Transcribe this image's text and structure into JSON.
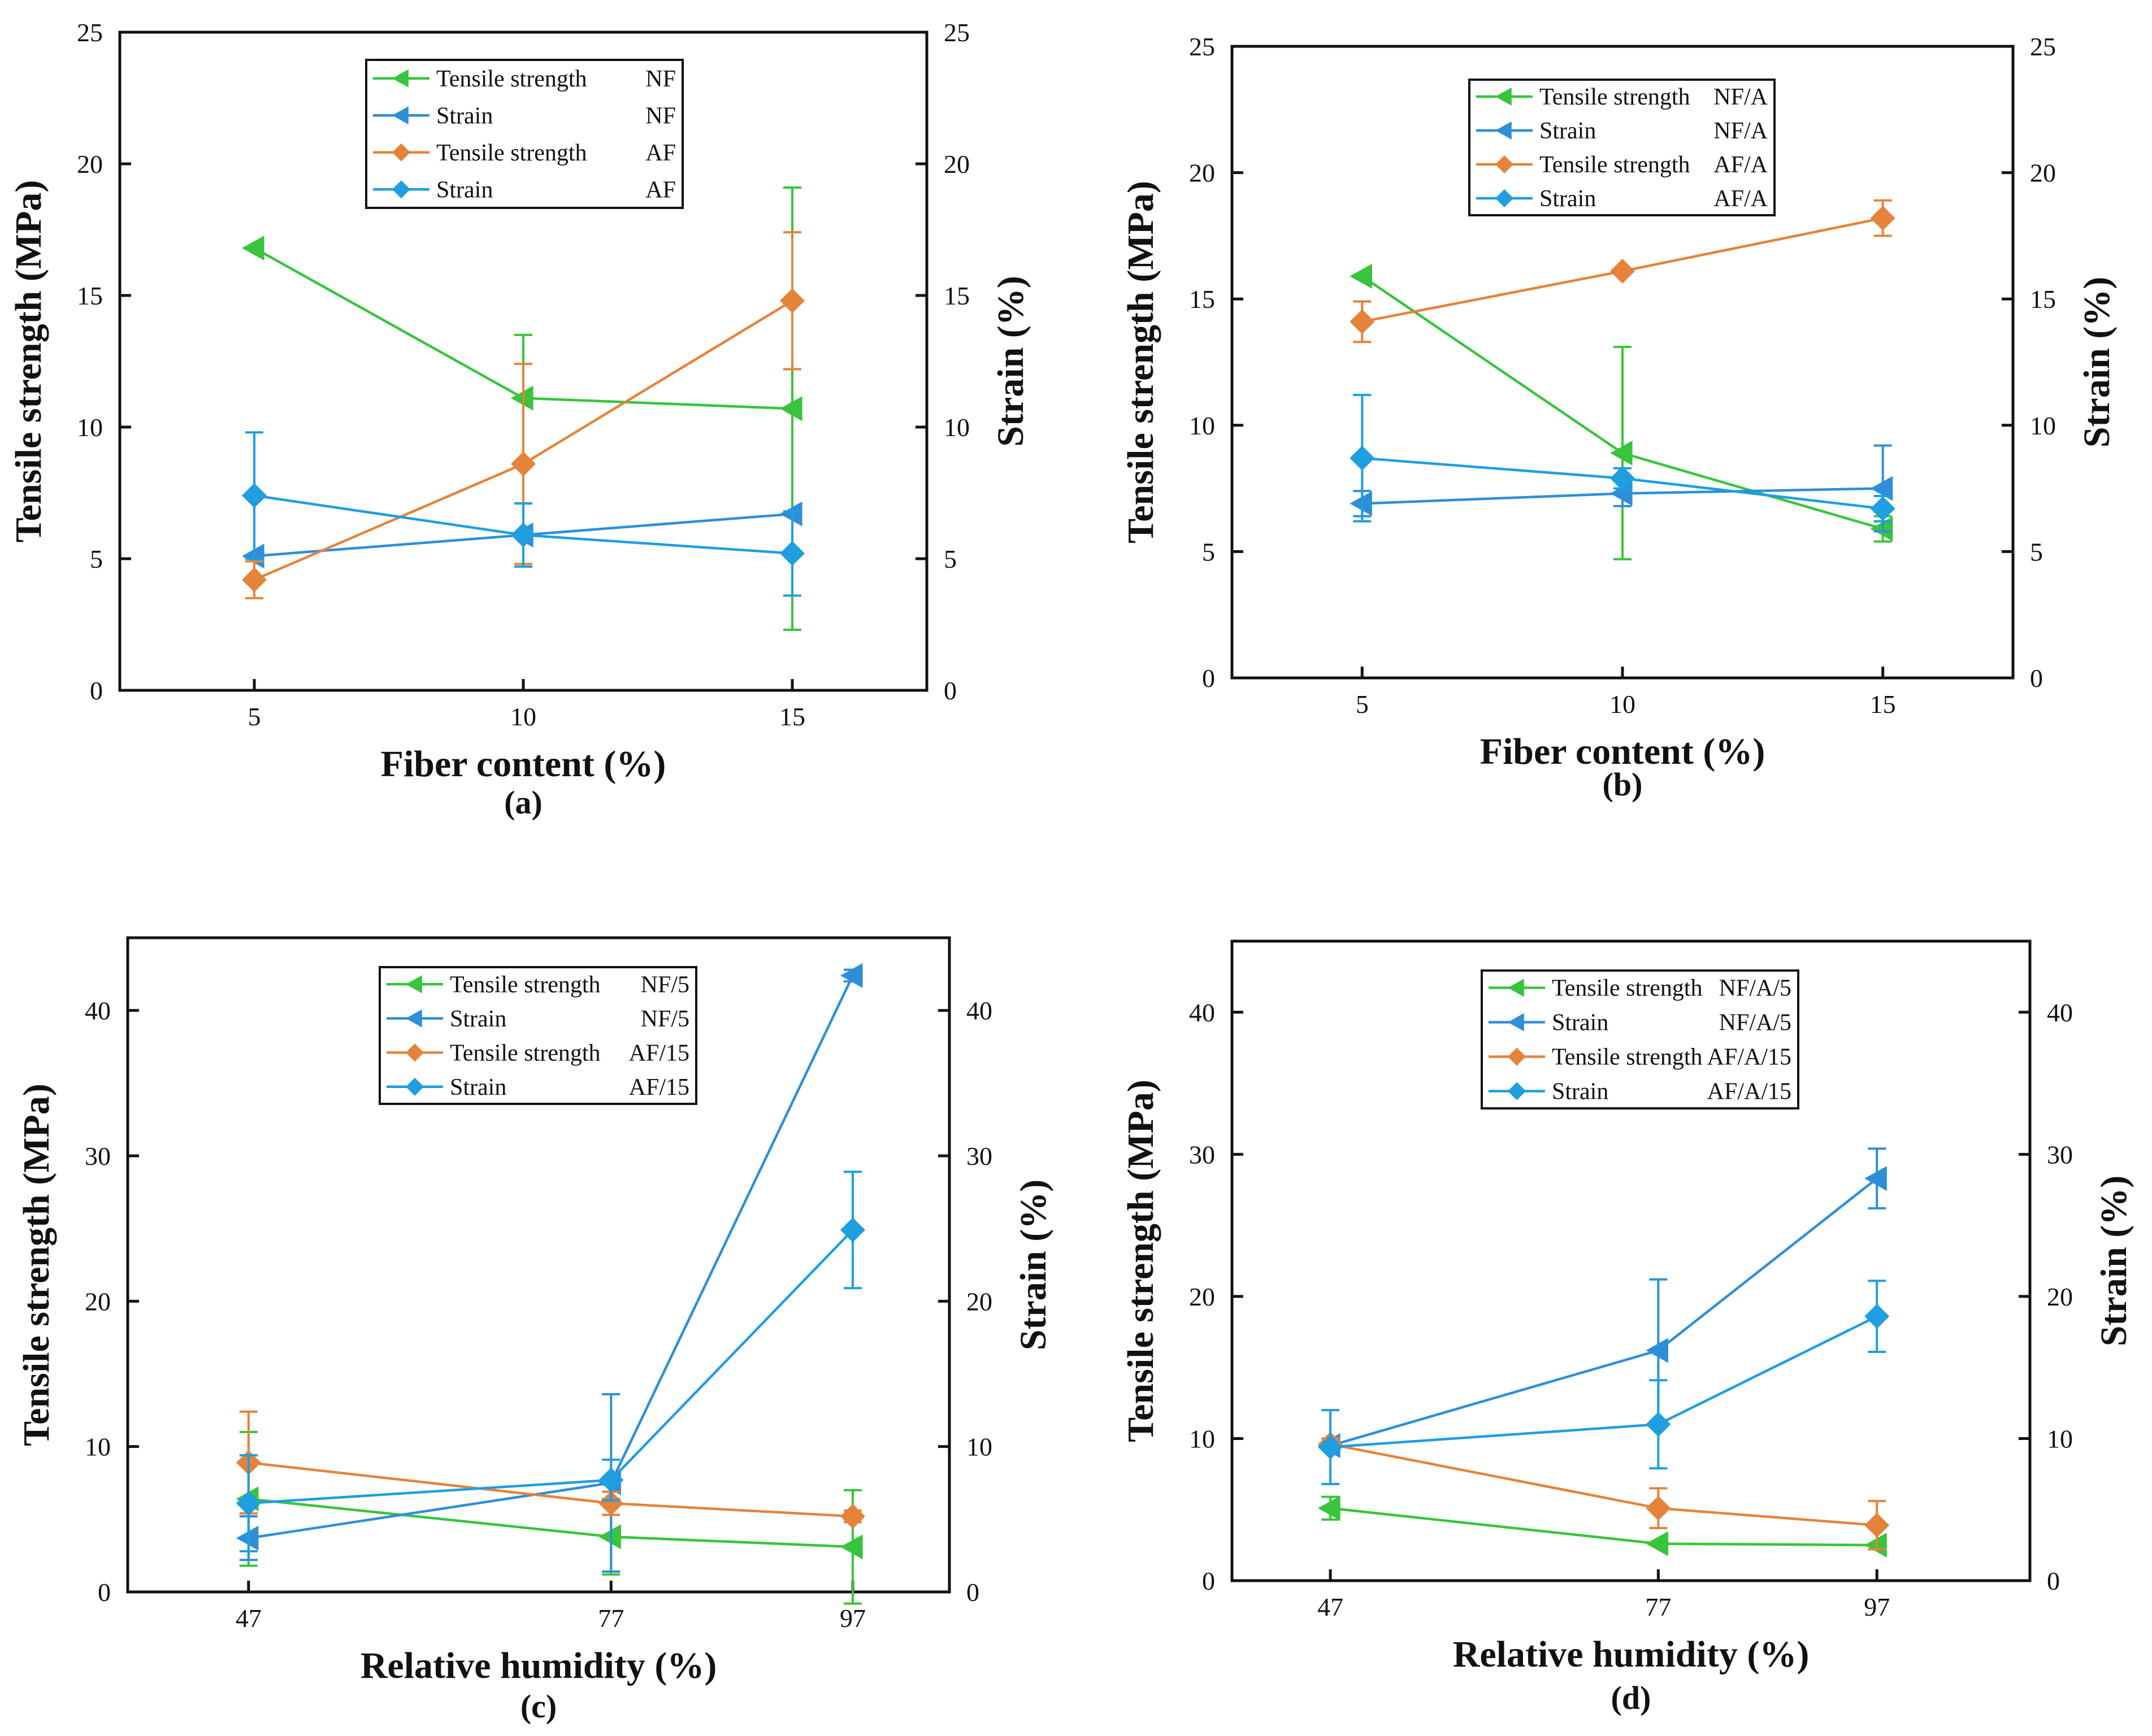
{
  "figure": {
    "colors": {
      "nf_tensile": "#38c43c",
      "nf_strain": "#2e8fd6",
      "af_tensile": "#e5833a",
      "af_strain": "#1f9ee0",
      "axis": "#111111"
    }
  },
  "chart_data": [
    {
      "id": "a",
      "type": "line",
      "caption": "(a)",
      "xlabel": "Fiber content (%)",
      "ylabel_left": "Tensile strength (MPa)",
      "ylabel_right": "Strain (%)",
      "x": [
        5,
        10,
        15
      ],
      "x_ticks": [
        "5",
        "10",
        "15"
      ],
      "xlim": [
        2.5,
        17.5
      ],
      "ylim_left": [
        0,
        25
      ],
      "ylim_right": [
        0,
        25
      ],
      "y_ticks_left": [
        "0",
        "5",
        "10",
        "15",
        "20",
        "25"
      ],
      "y_ticks_right": [
        "0",
        "5",
        "10",
        "15",
        "20",
        "25"
      ],
      "y_tick_values": [
        0,
        5,
        10,
        15,
        20,
        25
      ],
      "series": [
        {
          "name": "Tensile strength NF",
          "legend_left": "Tensile strength",
          "legend_right": "NF",
          "axis": "left",
          "marker": "triangle-left",
          "color_key": "nf_tensile",
          "values": [
            16.8,
            11.1,
            10.7
          ],
          "errors": [
            0,
            2.4,
            8.4
          ]
        },
        {
          "name": "Strain NF",
          "legend_left": "Strain",
          "legend_right": "NF",
          "axis": "right",
          "marker": "triangle-left",
          "color_key": "nf_strain",
          "values": [
            5.1,
            5.9,
            6.7
          ],
          "errors": [
            0,
            1.2,
            0
          ]
        },
        {
          "name": "Tensile strength AF",
          "legend_left": "Tensile strength",
          "legend_right": "AF",
          "axis": "left",
          "marker": "diamond",
          "color_key": "af_tensile",
          "values": [
            4.2,
            8.6,
            14.8
          ],
          "errors": [
            0.7,
            3.8,
            2.6
          ]
        },
        {
          "name": "Strain AF",
          "legend_left": "Strain",
          "legend_right": "AF",
          "axis": "right",
          "marker": "diamond",
          "color_key": "af_strain",
          "values": [
            7.4,
            5.9,
            5.2
          ],
          "errors": [
            2.4,
            1.2,
            1.6
          ]
        }
      ]
    },
    {
      "id": "b",
      "type": "line",
      "caption": "(b)",
      "xlabel": "Fiber content (%)",
      "ylabel_left": "Tensile strength (MPa)",
      "ylabel_right": "Strain (%)",
      "x": [
        5,
        10,
        15
      ],
      "x_ticks": [
        "5",
        "10",
        "15"
      ],
      "xlim": [
        2.5,
        17.5
      ],
      "ylim_left": [
        0,
        25
      ],
      "ylim_right": [
        0,
        25
      ],
      "y_ticks_left": [
        "0",
        "5",
        "10",
        "15",
        "20",
        "25"
      ],
      "y_ticks_right": [
        "0",
        "5",
        "10",
        "15",
        "20",
        "25"
      ],
      "y_tick_values": [
        0,
        5,
        10,
        15,
        20,
        25
      ],
      "series": [
        {
          "name": "Tensile strength NF/A",
          "legend_left": "Tensile strength",
          "legend_right": "NF/A",
          "axis": "left",
          "marker": "triangle-left",
          "color_key": "nf_tensile",
          "values": [
            15.9,
            8.9,
            5.9
          ],
          "errors": [
            0,
            4.2,
            0.5
          ]
        },
        {
          "name": "Strain NF/A",
          "legend_left": "Strain",
          "legend_right": "NF/A",
          "axis": "right",
          "marker": "triangle-left",
          "color_key": "nf_strain",
          "values": [
            6.9,
            7.3,
            7.5
          ],
          "errors": [
            0.5,
            0.5,
            1.7
          ]
        },
        {
          "name": "Tensile strength AF/A",
          "legend_left": "Tensile strength",
          "legend_right": "AF/A",
          "axis": "left",
          "marker": "diamond",
          "color_key": "af_tensile",
          "values": [
            14.1,
            16.1,
            18.2
          ],
          "errors": [
            0.8,
            0,
            0.7
          ]
        },
        {
          "name": "Strain AF/A",
          "legend_left": "Strain",
          "legend_right": "AF/A",
          "axis": "right",
          "marker": "diamond",
          "color_key": "af_strain",
          "values": [
            8.7,
            7.9,
            6.7
          ],
          "errors": [
            2.5,
            0.4,
            0.5
          ]
        }
      ]
    },
    {
      "id": "c",
      "type": "line",
      "caption": "(c)",
      "xlabel": "Relative humidity (%)",
      "ylabel_left": "Tensile strength (MPa)",
      "ylabel_right": "Strain (%)",
      "x": [
        47,
        77,
        97
      ],
      "x_ticks": [
        "47",
        "77",
        "97"
      ],
      "xlim": [
        37,
        105
      ],
      "ylim_left": [
        0,
        45
      ],
      "ylim_right": [
        0,
        45
      ],
      "y_ticks_left": [
        "0",
        "10",
        "20",
        "30",
        "40"
      ],
      "y_ticks_right": [
        "0",
        "10",
        "20",
        "30",
        "40"
      ],
      "y_tick_values": [
        0,
        10,
        20,
        30,
        40
      ],
      "series": [
        {
          "name": "Tensile strength NF/5",
          "legend_left": "Tensile strength",
          "legend_right": "NF/5",
          "axis": "left",
          "marker": "triangle-left",
          "color_key": "nf_tensile",
          "values": [
            6.4,
            3.8,
            3.1
          ],
          "errors": [
            4.6,
            2.6,
            3.9
          ]
        },
        {
          "name": "Strain NF/5",
          "legend_left": "Strain",
          "legend_right": "NF/5",
          "axis": "right",
          "marker": "triangle-left",
          "color_key": "nf_strain",
          "values": [
            3.7,
            7.5,
            42.4
          ],
          "errors": [
            1.5,
            6.1,
            0.4
          ]
        },
        {
          "name": "Tensile strength AF/15",
          "legend_left": "Tensile strength",
          "legend_right": "AF/15",
          "axis": "left",
          "marker": "diamond",
          "color_key": "af_tensile",
          "values": [
            8.9,
            6.1,
            5.2
          ],
          "errors": [
            3.5,
            0.8,
            0.4
          ]
        },
        {
          "name": "Strain AF/15",
          "legend_left": "Strain",
          "legend_right": "AF/15",
          "axis": "right",
          "marker": "diamond",
          "color_key": "af_strain",
          "values": [
            6.1,
            7.7,
            24.9
          ],
          "errors": [
            3.3,
            1.4,
            4
          ]
        }
      ]
    },
    {
      "id": "d",
      "type": "line",
      "caption": "(d)",
      "xlabel": "Relative humidity (%)",
      "ylabel_left": "Tensile strength (MPa)",
      "ylabel_right": "Strain (%)",
      "x": [
        47,
        77,
        97
      ],
      "x_ticks": [
        "47",
        "77",
        "97"
      ],
      "xlim": [
        38,
        111
      ],
      "ylim_left": [
        0,
        45
      ],
      "ylim_right": [
        0,
        45
      ],
      "y_ticks_left": [
        "0",
        "10",
        "20",
        "30",
        "40"
      ],
      "y_ticks_right": [
        "0",
        "10",
        "20",
        "30",
        "40"
      ],
      "y_tick_values": [
        0,
        10,
        20,
        30,
        40
      ],
      "series": [
        {
          "name": "Tensile strength NF/A/5",
          "legend_left": "Tensile strength",
          "legend_right": "NF/A/5",
          "axis": "left",
          "marker": "triangle-left",
          "color_key": "nf_tensile",
          "values": [
            5.1,
            2.6,
            2.5
          ],
          "errors": [
            0.8,
            0,
            0
          ]
        },
        {
          "name": "Strain NF/A/5",
          "legend_left": "Strain",
          "legend_right": "NF/A/5",
          "axis": "right",
          "marker": "triangle-left",
          "color_key": "nf_strain",
          "values": [
            9.5,
            16.2,
            28.3
          ],
          "errors": [
            0,
            5,
            2.1
          ]
        },
        {
          "name": "Tensile strength AF/A/15",
          "legend_left": "Tensile strength",
          "legend_right": "AF/A/15",
          "axis": "left",
          "marker": "diamond",
          "color_key": "af_tensile",
          "values": [
            9.6,
            5.1,
            3.9
          ],
          "errors": [
            0.4,
            1.4,
            1.7
          ]
        },
        {
          "name": "Strain AF/A/15",
          "legend_left": "Strain",
          "legend_right": "AF/A/15",
          "axis": "right",
          "marker": "diamond",
          "color_key": "af_strain",
          "values": [
            9.4,
            11,
            18.6
          ],
          "errors": [
            2.6,
            3.1,
            2.5
          ]
        }
      ]
    }
  ]
}
